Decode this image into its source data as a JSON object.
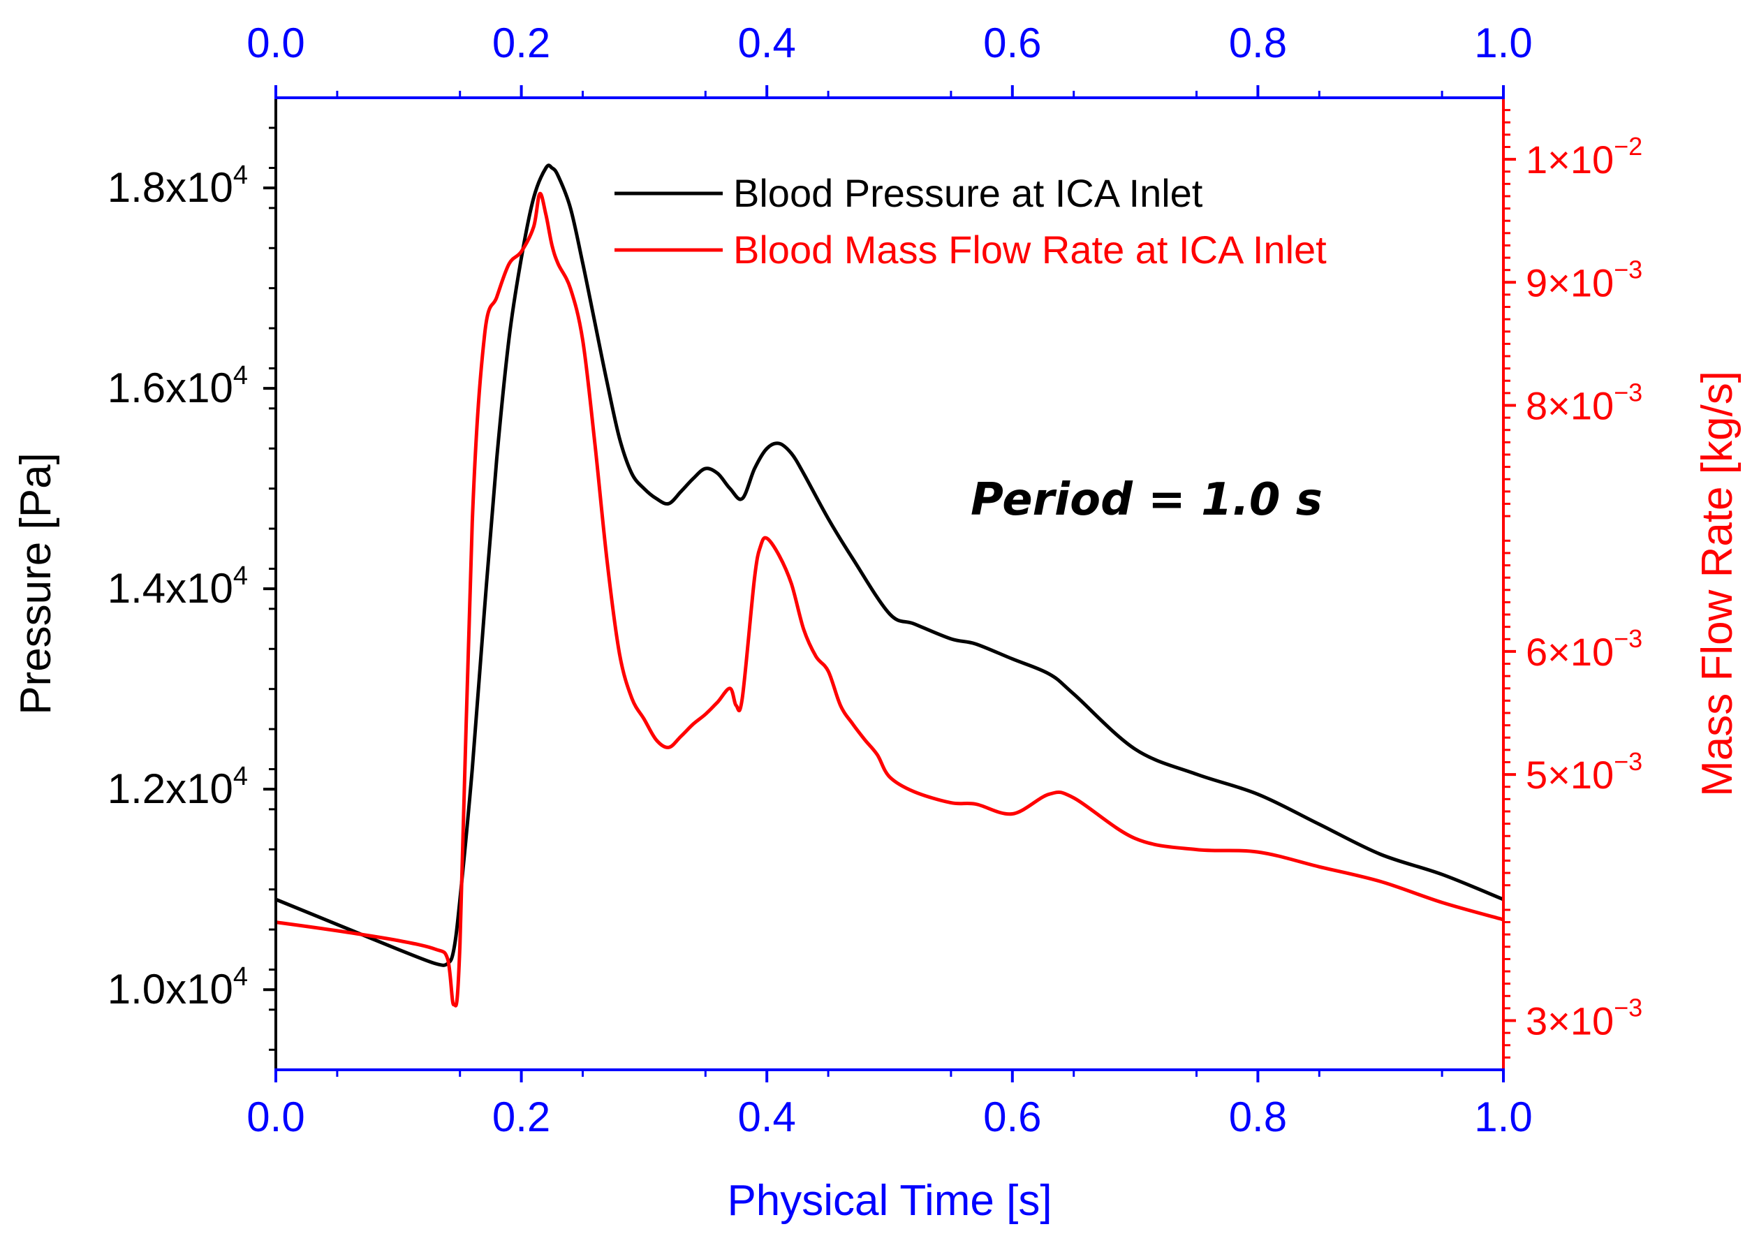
{
  "chart_data": {
    "type": "line",
    "xlabel": "Physical Time [s]",
    "ylabel_left": "Pressure [Pa]",
    "ylabel_right": "Mass Flow Rate [kg/s]",
    "xlim": [
      0,
      1.0
    ],
    "ylim_left": [
      9200,
      18900
    ],
    "ylim_right": [
      0.0026,
      0.0105
    ],
    "x_ticks": [
      {
        "value": 0.0,
        "label": "0.0"
      },
      {
        "value": 0.2,
        "label": "0.2"
      },
      {
        "value": 0.4,
        "label": "0.4"
      },
      {
        "value": 0.6,
        "label": "0.6"
      },
      {
        "value": 0.8,
        "label": "0.8"
      },
      {
        "value": 1.0,
        "label": "1.0"
      }
    ],
    "y_left_ticks": [
      {
        "value": 10000,
        "base": "1.0x10",
        "exp": "4"
      },
      {
        "value": 12000,
        "base": "1.2x10",
        "exp": "4"
      },
      {
        "value": 14000,
        "base": "1.4x10",
        "exp": "4"
      },
      {
        "value": 16000,
        "base": "1.6x10",
        "exp": "4"
      },
      {
        "value": 18000,
        "base": "1.8x10",
        "exp": "4"
      }
    ],
    "y_right_ticks": [
      {
        "value": 0.003,
        "base": "3×10",
        "exp": "−3"
      },
      {
        "value": 0.005,
        "base": "5×10",
        "exp": "−3"
      },
      {
        "value": 0.006,
        "base": "6×10",
        "exp": "−3"
      },
      {
        "value": 0.008,
        "base": "8×10",
        "exp": "−3"
      },
      {
        "value": 0.009,
        "base": "9×10",
        "exp": "−3"
      },
      {
        "value": 0.01,
        "base": "1×10",
        "exp": "−2"
      }
    ],
    "annotation": "Period = 1.0 s",
    "colors": {
      "pressure": "#000000",
      "flow": "#ff0000",
      "x_axis": "#0000ff",
      "right_axis": "#ff0000",
      "left_axis": "#000000"
    },
    "series": [
      {
        "name": "Blood Pressure at ICA Inlet",
        "axis": "left",
        "x": [
          0.0,
          0.05,
          0.1,
          0.13,
          0.14,
          0.145,
          0.15,
          0.16,
          0.17,
          0.18,
          0.19,
          0.2,
          0.21,
          0.22,
          0.225,
          0.23,
          0.24,
          0.25,
          0.26,
          0.27,
          0.28,
          0.29,
          0.3,
          0.31,
          0.32,
          0.33,
          0.34,
          0.35,
          0.36,
          0.37,
          0.38,
          0.39,
          0.4,
          0.41,
          0.42,
          0.43,
          0.45,
          0.47,
          0.5,
          0.52,
          0.55,
          0.57,
          0.6,
          0.63,
          0.65,
          0.7,
          0.75,
          0.8,
          0.85,
          0.9,
          0.95,
          1.0
        ],
        "y": [
          10900,
          10650,
          10400,
          10260,
          10260,
          10400,
          10900,
          12200,
          13800,
          15300,
          16500,
          17300,
          17900,
          18200,
          18200,
          18120,
          17800,
          17250,
          16650,
          16050,
          15500,
          15150,
          15000,
          14900,
          14850,
          14970,
          15100,
          15200,
          15150,
          15000,
          14900,
          15200,
          15400,
          15450,
          15350,
          15150,
          14700,
          14300,
          13750,
          13650,
          13500,
          13450,
          13300,
          13150,
          12950,
          12400,
          12150,
          11950,
          11650,
          11350,
          11150,
          10900
        ]
      },
      {
        "name": "Blood Mass Flow Rate at ICA Inlet",
        "axis": "right",
        "x": [
          0.0,
          0.05,
          0.1,
          0.13,
          0.14,
          0.145,
          0.15,
          0.16,
          0.17,
          0.18,
          0.19,
          0.2,
          0.21,
          0.215,
          0.22,
          0.225,
          0.23,
          0.24,
          0.25,
          0.26,
          0.27,
          0.28,
          0.29,
          0.3,
          0.31,
          0.32,
          0.33,
          0.34,
          0.35,
          0.36,
          0.37,
          0.375,
          0.38,
          0.39,
          0.395,
          0.4,
          0.41,
          0.42,
          0.43,
          0.44,
          0.45,
          0.46,
          0.47,
          0.48,
          0.49,
          0.5,
          0.52,
          0.55,
          0.57,
          0.6,
          0.63,
          0.65,
          0.7,
          0.75,
          0.8,
          0.85,
          0.9,
          0.95,
          1.0
        ],
        "y": [
          0.0038,
          0.00373,
          0.00365,
          0.00358,
          0.0035,
          0.00313,
          0.00362,
          0.00705,
          0.00857,
          0.00888,
          0.00915,
          0.00925,
          0.00945,
          0.00972,
          0.00955,
          0.0093,
          0.00915,
          0.00895,
          0.00853,
          0.00768,
          0.00672,
          0.00598,
          0.00562,
          0.00545,
          0.00528,
          0.00522,
          0.00531,
          0.00541,
          0.00549,
          0.00559,
          0.0057,
          0.00556,
          0.00562,
          0.0066,
          0.00686,
          0.00692,
          0.00678,
          0.00655,
          0.00618,
          0.00596,
          0.00584,
          0.00556,
          0.00541,
          0.00528,
          0.00516,
          0.00498,
          0.00486,
          0.00477,
          0.00476,
          0.00468,
          0.00484,
          0.00481,
          0.00448,
          0.00439,
          0.00437,
          0.00425,
          0.00413,
          0.00396,
          0.00382
        ]
      }
    ]
  }
}
